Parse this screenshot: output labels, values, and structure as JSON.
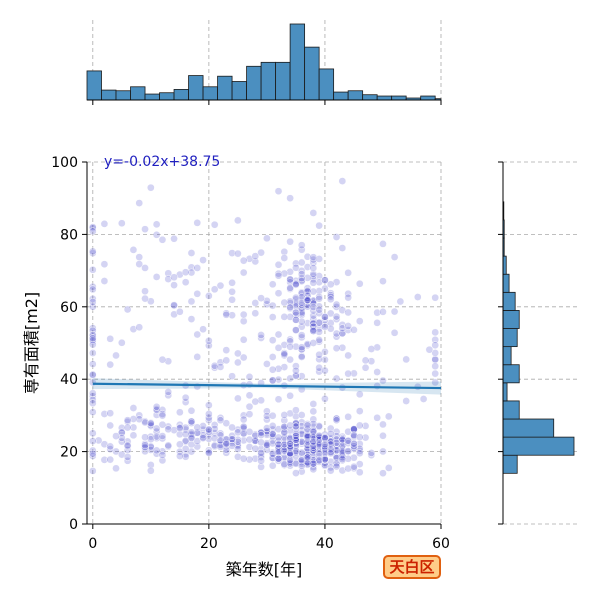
{
  "chart_data": {
    "type": "scatter",
    "title": "",
    "xlabel": "築年数[年]",
    "ylabel": "専有面積[m2]",
    "xlim": [
      -1,
      60
    ],
    "ylim": [
      0,
      100
    ],
    "xticks": [
      0,
      20,
      40,
      60
    ],
    "yticks": [
      0,
      20,
      40,
      60,
      80,
      100
    ],
    "grid": true,
    "point_color": "#3b3bc8",
    "regression": {
      "label": "y=-0.02x+38.75",
      "slope": -0.02,
      "intercept": 38.75,
      "color": "#1f77b4"
    },
    "clusters": [
      {
        "cx": 38,
        "cy": 21,
        "sx": 4.5,
        "sy": 3.5,
        "n": 300
      },
      {
        "cx": 24,
        "cy": 23,
        "sx": 9.0,
        "sy": 3.0,
        "n": 150
      },
      {
        "cx": 10,
        "cy": 26,
        "sx": 5.0,
        "sy": 4.0,
        "n": 70
      },
      {
        "cx": 37,
        "cy": 60,
        "sx": 3.0,
        "sy": 8.0,
        "n": 150
      },
      {
        "cx": 30,
        "cy": 45,
        "sx": 14.0,
        "sy": 16.0,
        "n": 200
      },
      {
        "cx": 20,
        "cy": 70,
        "sx": 14.0,
        "sy": 12.0,
        "n": 60
      },
      {
        "cx": 0,
        "cy": 40,
        "sx": 0.15,
        "sy": 25.0,
        "n": 40
      },
      {
        "cx": 59,
        "cy": 45,
        "sx": 0.3,
        "sy": 8.0,
        "n": 12
      }
    ],
    "top_histogram": {
      "bin_edges": [
        -1,
        1.5,
        4,
        6.5,
        9,
        11.5,
        14,
        16.5,
        19,
        21.5,
        24,
        26.5,
        29,
        31.5,
        34,
        36.5,
        39,
        41.5,
        44,
        46.5,
        49,
        51.5,
        54,
        56.5,
        59,
        60
      ],
      "counts": [
        44,
        15,
        14,
        20,
        9,
        11,
        16,
        37,
        20,
        36,
        28,
        51,
        57,
        57,
        115,
        80,
        47,
        12,
        14,
        8,
        6,
        6,
        3,
        6,
        2
      ]
    },
    "right_histogram": {
      "bin_edges": [
        14,
        19,
        24,
        29,
        34,
        39,
        44,
        49,
        54,
        59,
        64,
        69,
        74,
        79,
        84,
        89
      ],
      "counts": [
        35,
        175,
        125,
        40,
        10,
        40,
        20,
        35,
        40,
        30,
        15,
        8,
        3,
        3,
        2
      ]
    }
  },
  "badge": {
    "label": "天白区"
  }
}
